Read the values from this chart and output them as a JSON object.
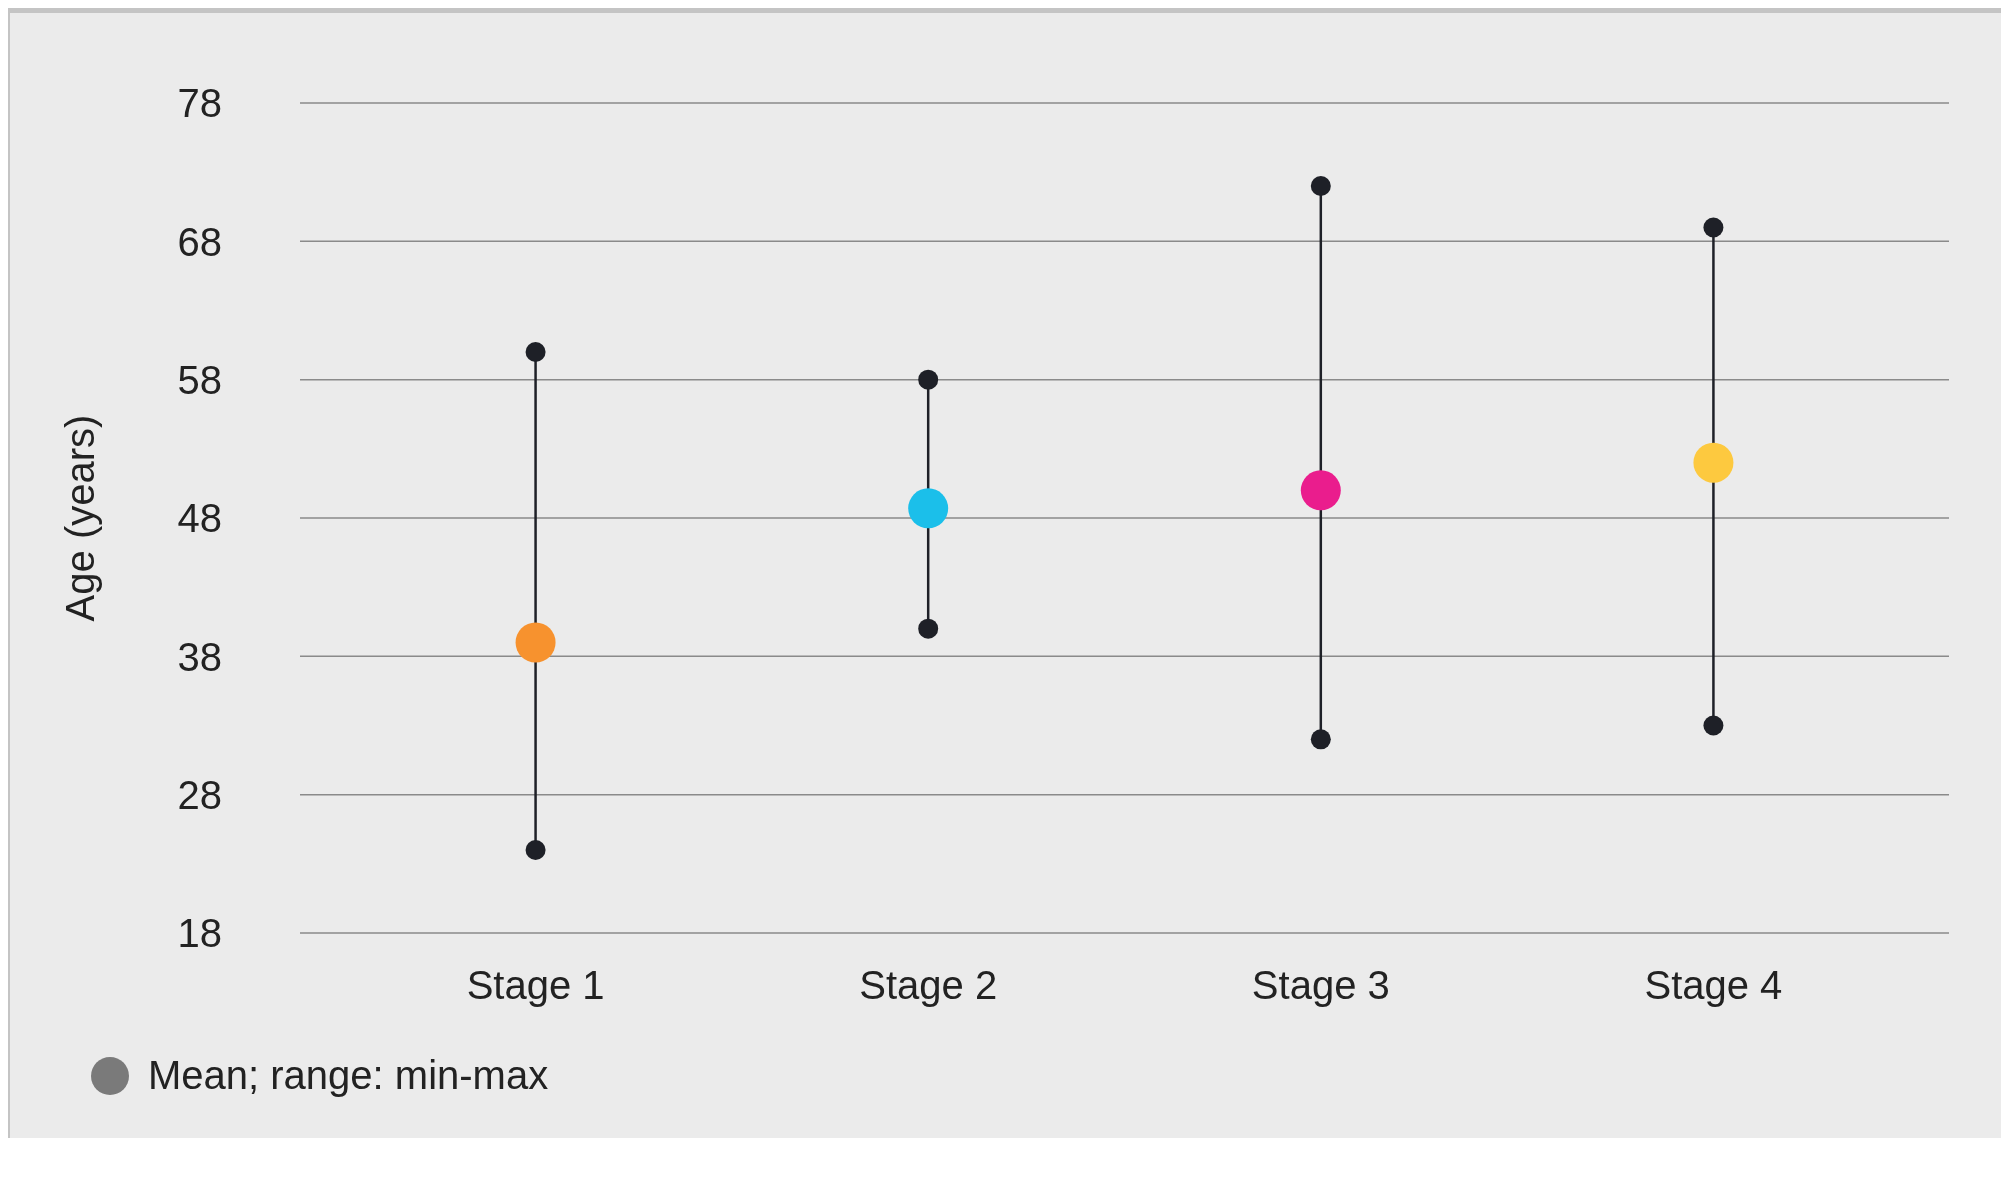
{
  "chart_data": {
    "type": "scatter",
    "ylabel": "Age (years)",
    "categories": [
      "Stage 1",
      "Stage 2",
      "Stage 3",
      "Stage 4"
    ],
    "series": [
      {
        "type": "line",
        "color": "#1e2027",
        "marker": "circle",
        "x": [
          "Stage 1",
          "Stage 1"
        ],
        "values": [
          24,
          60
        ]
      },
      {
        "type": "line",
        "color": "#1e2027",
        "marker": "circle",
        "x": [
          "Stage 2",
          "Stage 2"
        ],
        "values": [
          40,
          58
        ]
      },
      {
        "type": "line",
        "color": "#1e2027",
        "marker": "circle",
        "x": [
          "Stage 3",
          "Stage 3"
        ],
        "values": [
          32,
          72
        ]
      },
      {
        "type": "line",
        "color": "#1e2027",
        "marker": "circle",
        "x": [
          "Stage 4",
          "Stage 4"
        ],
        "values": [
          33,
          69
        ]
      },
      {
        "name": "Mean; range: min-max",
        "color": "#7a7a7a",
        "colors": [
          "#f7922e",
          "#1bbfea",
          "#ea1d8d",
          "#fdc93f"
        ],
        "values": [
          39,
          48.7,
          50,
          52
        ]
      }
    ],
    "ylim": [
      18,
      78
    ],
    "yticks": [
      18,
      28,
      38,
      48,
      58,
      68,
      78
    ],
    "grid": "y",
    "legend": "bottom left"
  }
}
